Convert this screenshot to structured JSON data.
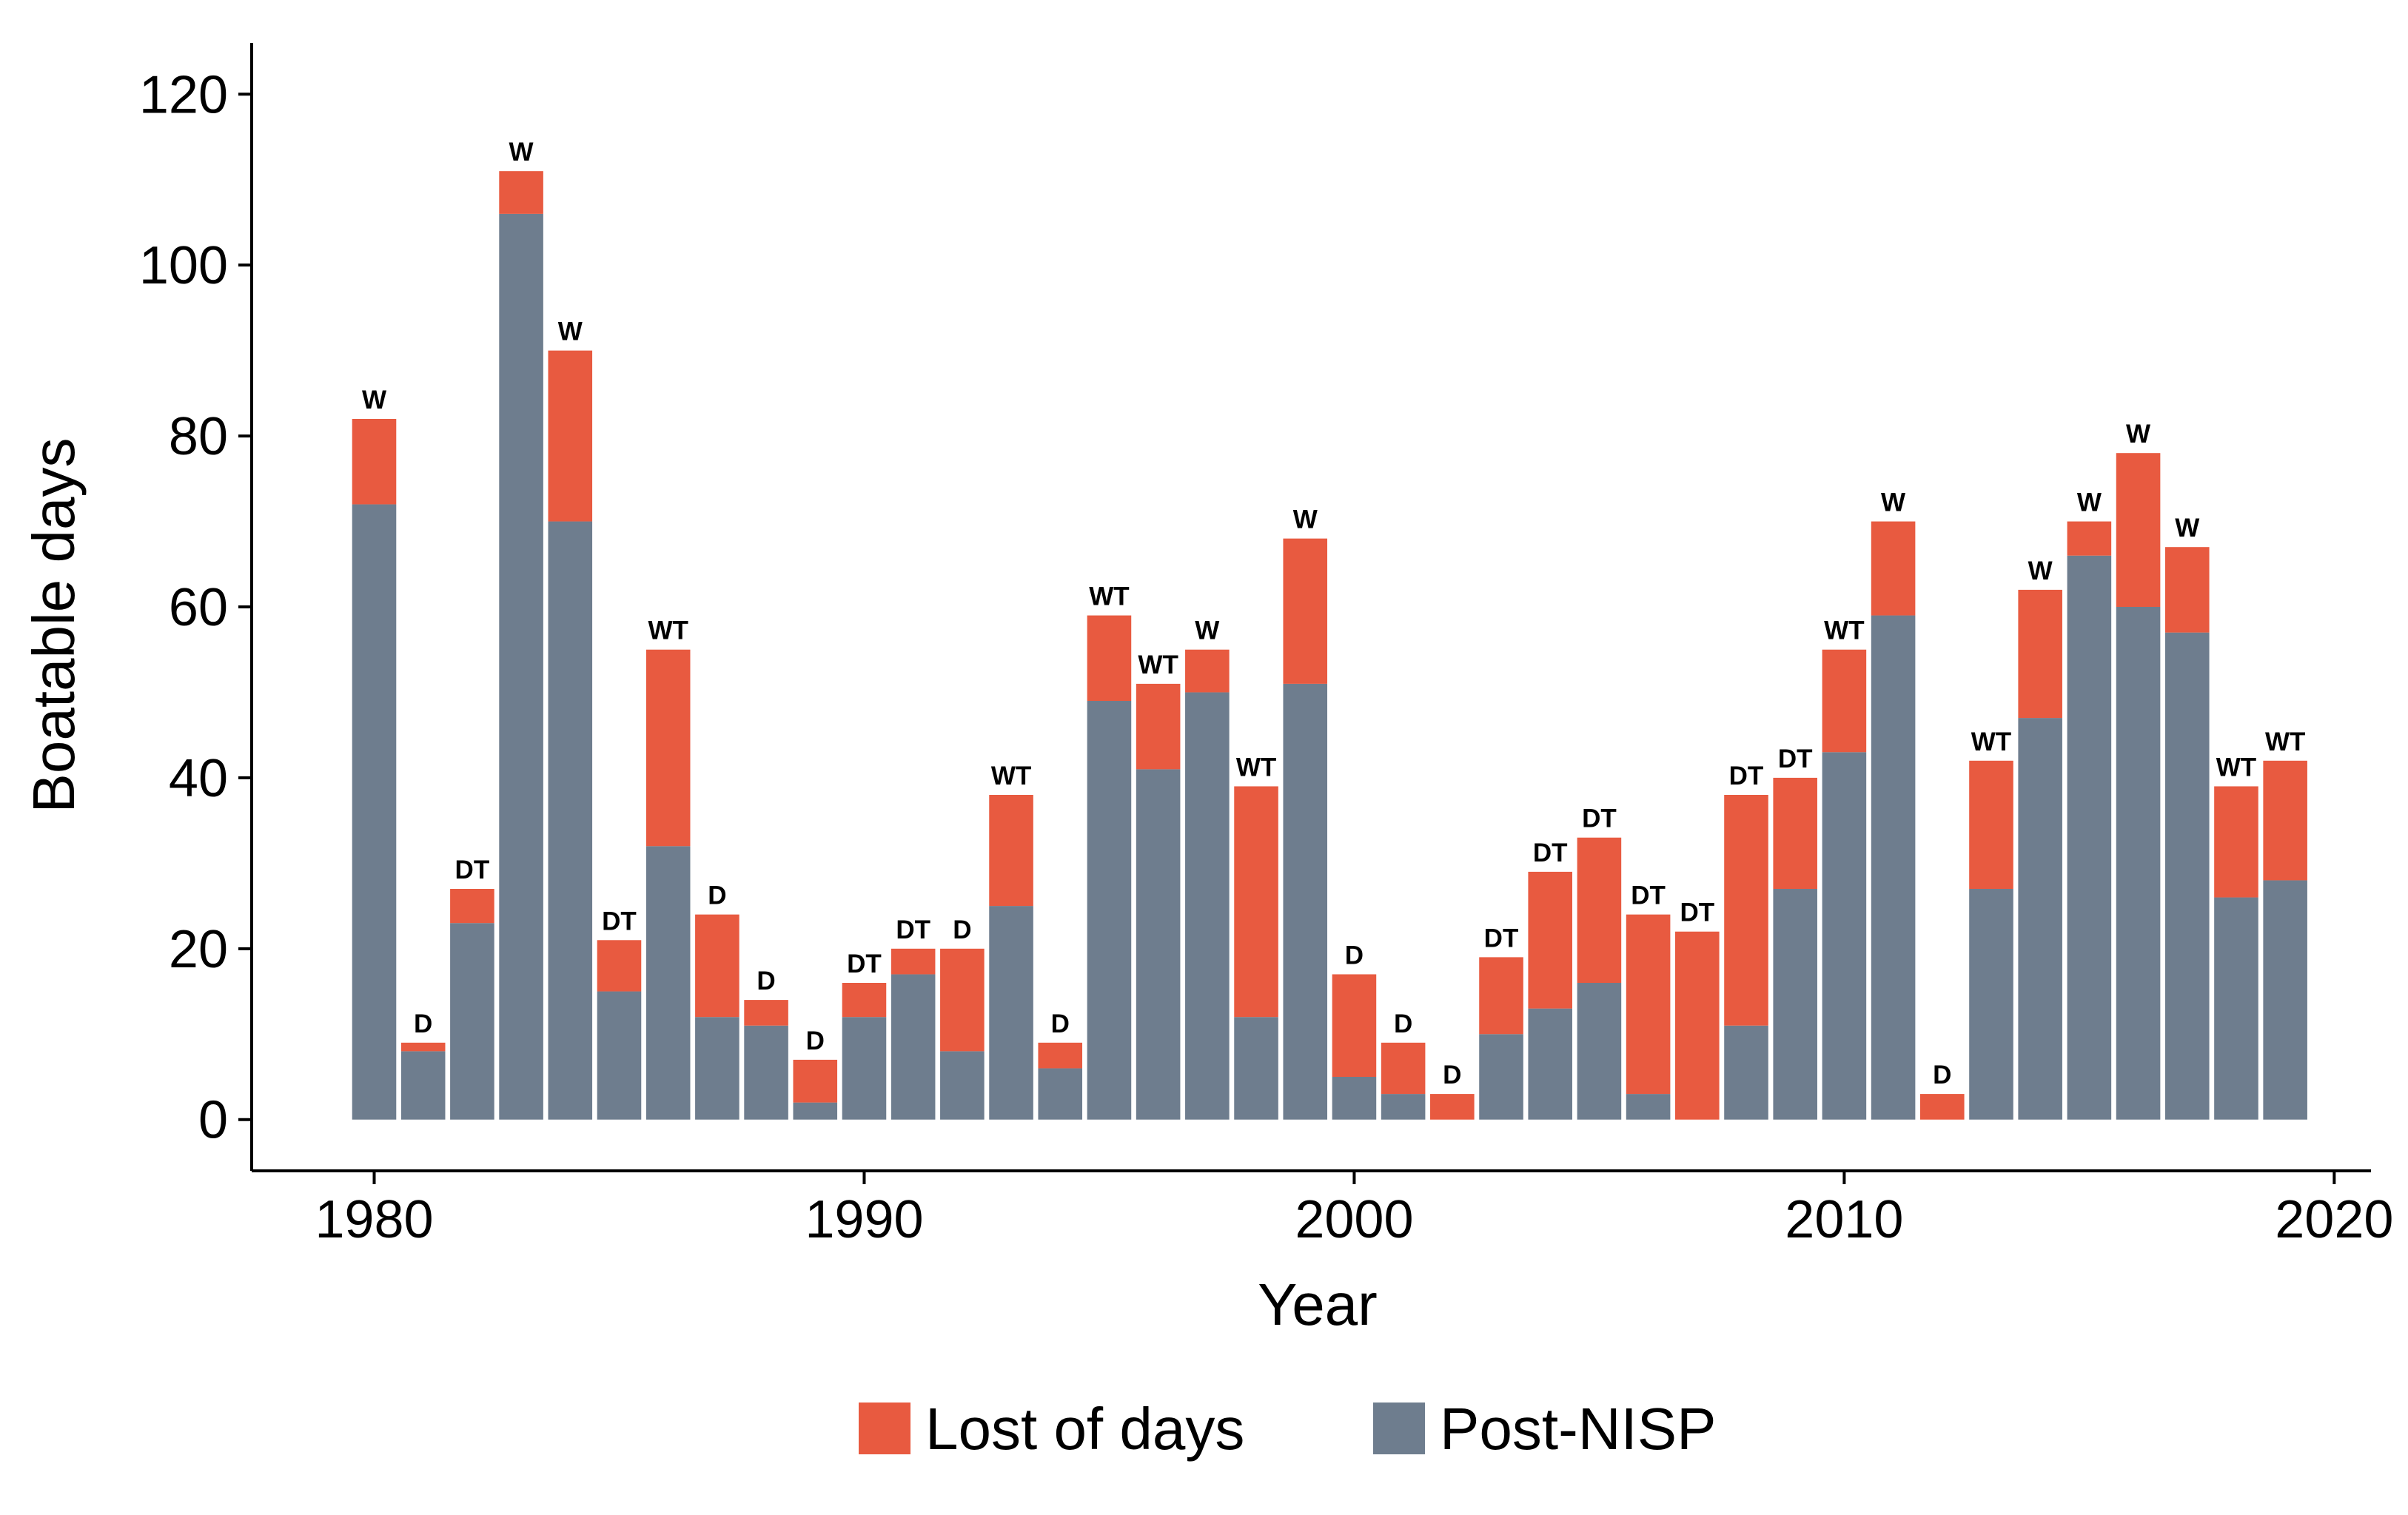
{
  "chart_data": {
    "type": "bar",
    "stacked": true,
    "title": "",
    "xlabel": "Year",
    "ylabel": "Boatable days",
    "xlim": [
      1977.5,
      2020.75
    ],
    "ylim": [
      -6,
      126
    ],
    "x_ticks": [
      1980,
      1990,
      2000,
      2010,
      2020
    ],
    "y_ticks": [
      0,
      20,
      40,
      60,
      80,
      100,
      120
    ],
    "grid": false,
    "legend_position": "bottom",
    "years": [
      1980,
      1981,
      1982,
      1983,
      1984,
      1985,
      1986,
      1987,
      1988,
      1989,
      1990,
      1991,
      1992,
      1993,
      1994,
      1995,
      1996,
      1997,
      1998,
      1999,
      2000,
      2001,
      2002,
      2003,
      2004,
      2005,
      2006,
      2007,
      2008,
      2009,
      2010,
      2011,
      2012,
      2013,
      2014,
      2015,
      2016,
      2017,
      2018,
      2019
    ],
    "totals": [
      82,
      9,
      27,
      111,
      90,
      21,
      55,
      24,
      14,
      7,
      16,
      20,
      20,
      38,
      9,
      59,
      51,
      55,
      39,
      68,
      17,
      9,
      3,
      19,
      29,
      33,
      24,
      22,
      38,
      40,
      55,
      70,
      3,
      42,
      62,
      70,
      78,
      67,
      39,
      42
    ],
    "series": [
      {
        "name": "Post-NISP",
        "color": "#6e7d8e",
        "values": [
          72,
          8,
          23,
          106,
          70,
          15,
          32,
          12,
          11,
          2,
          12,
          17,
          8,
          25,
          6,
          49,
          41,
          50,
          12,
          51,
          5,
          3,
          0,
          10,
          13,
          16,
          3,
          0,
          11,
          27,
          43,
          59,
          0,
          27,
          47,
          66,
          60,
          57,
          26,
          28
        ]
      },
      {
        "name": "Lost of days",
        "color": "#e85a40",
        "values": [
          10,
          1,
          4,
          5,
          20,
          6,
          23,
          12,
          3,
          5,
          4,
          3,
          12,
          13,
          3,
          10,
          10,
          5,
          27,
          17,
          12,
          6,
          3,
          9,
          16,
          17,
          21,
          22,
          27,
          13,
          12,
          11,
          3,
          15,
          15,
          4,
          18,
          10,
          13,
          14
        ]
      }
    ],
    "bar_labels": [
      "W",
      "D",
      "DT",
      "W",
      "W",
      "DT",
      "WT",
      "D",
      "D",
      "D",
      "DT",
      "DT",
      "D",
      "WT",
      "D",
      "WT",
      "WT",
      "W",
      "WT",
      "W",
      "D",
      "D",
      "D",
      "DT",
      "DT",
      "DT",
      "DT",
      "DT",
      "DT",
      "DT",
      "WT",
      "W",
      "D",
      "WT",
      "W",
      "W",
      "W",
      "W",
      "WT",
      "WT"
    ],
    "legend": [
      {
        "label": "Lost of days",
        "color": "#e85a40"
      },
      {
        "label": "Post-NISP",
        "color": "#6e7d8e"
      }
    ]
  }
}
